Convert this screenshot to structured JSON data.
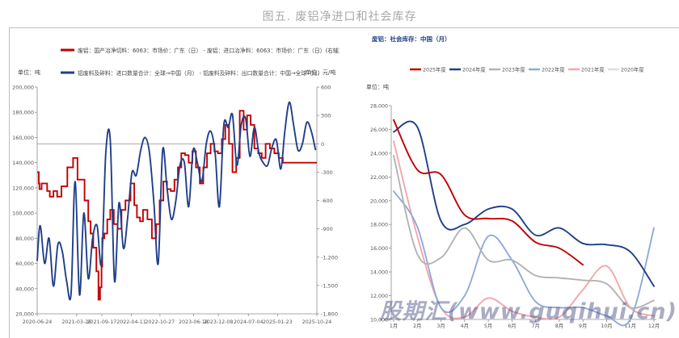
{
  "page_title": "图五. 废铝净进口和社会库存",
  "watermark": "股期汇(www.guqihui.cn)",
  "chart_data": [
    {
      "type": "line",
      "title": "",
      "legend_position": "top",
      "legend": [
        "废铝：国产冶净切料：6063：市场价：广东（日） - 废铝：进口冶净料：6063：市场价：广东（日）(右轴)",
        "铝废料及碎料：进口数量合计：全球→中国（月） - 铝废料及碎料：出口数量合计：中国→全球（月）"
      ],
      "left_unit": "单位：吨",
      "right_unit": "单位：元/吨",
      "ylim_left": [
        20000,
        200000
      ],
      "ylim_right": [
        -1800,
        600
      ],
      "left_ticks": [
        "20,000",
        "40,000",
        "60,000",
        "80,000",
        "100,000",
        "120,000",
        "140,000",
        "160,000",
        "180,000",
        "200,000"
      ],
      "right_ticks": [
        "-1,800",
        "-1,500",
        "-1,200",
        "-900",
        "-600",
        "-300",
        "0",
        "300",
        "600"
      ],
      "x_ticks": [
        "2020-06-24",
        "2021-03-26",
        "2021-09-17",
        "2022-04-11",
        "2022-10-27",
        "2023-06-18",
        "2023-12-08",
        "2024-07-04",
        "2025-01-23",
        "2025-10-24"
      ],
      "series": [
        {
          "name": "废铝：国产冶净切料：6063：市场价：广东（日） - 废铝：进口冶净料：6063：市场价：广东（日）(右轴)",
          "color": "#c00000",
          "axis": "right",
          "x": [
            "2020-06-24",
            "2020-07-05",
            "2020-07-10",
            "2020-07-25",
            "2020-09-01",
            "2020-09-20",
            "2020-10-15",
            "2020-11-10",
            "2020-12-10",
            "2021-01-20",
            "2021-03-01",
            "2021-04-01",
            "2021-05-20",
            "2021-06-15",
            "2021-07-01",
            "2021-07-20",
            "2021-08-10",
            "2021-08-25",
            "2021-09-05",
            "2021-09-15",
            "2021-09-20",
            "2021-10-05",
            "2021-10-25",
            "2021-11-15",
            "2021-12-10",
            "2022-01-05",
            "2022-02-01",
            "2022-03-01",
            "2022-04-05",
            "2022-05-01",
            "2022-05-20",
            "2022-06-10",
            "2022-07-01",
            "2022-08-01",
            "2022-09-01",
            "2022-10-01",
            "2022-10-25",
            "2022-11-20",
            "2022-12-15",
            "2023-01-10",
            "2023-02-05",
            "2023-03-01",
            "2023-03-25",
            "2023-04-20",
            "2023-05-15",
            "2023-06-10",
            "2023-07-05",
            "2023-08-01",
            "2023-08-25",
            "2023-09-20",
            "2023-10-15",
            "2023-11-10",
            "2023-12-05",
            "2024-01-01",
            "2024-01-25",
            "2024-02-20",
            "2024-03-15",
            "2024-04-10",
            "2024-05-05",
            "2024-06-01",
            "2024-06-25",
            "2024-07-20",
            "2024-08-15",
            "2024-09-10",
            "2024-10-05",
            "2024-11-01",
            "2024-12-01",
            "2025-01-01",
            "2025-02-01",
            "2025-03-01",
            "2025-05-01",
            "2025-07-01",
            "2025-09-01",
            "2025-10-24"
          ],
          "values": [
            -300,
            -420,
            -480,
            -420,
            -500,
            -560,
            -500,
            -560,
            -450,
            -250,
            -150,
            -380,
            -600,
            -820,
            -950,
            -1100,
            -1350,
            -1650,
            -1520,
            -1300,
            -1000,
            -950,
            -800,
            -700,
            -850,
            -900,
            -700,
            -600,
            -420,
            -650,
            -780,
            -820,
            -700,
            -800,
            -1000,
            -850,
            -600,
            -400,
            -480,
            -500,
            -380,
            -250,
            -100,
            -120,
            -200,
            -80,
            -250,
            -420,
            -250,
            -100,
            0,
            -80,
            -100,
            50,
            200,
            0,
            -300,
            -150,
            350,
            150,
            300,
            200,
            -50,
            -100,
            -150,
            0,
            -50,
            -100,
            -150,
            -200,
            -200,
            -200,
            -200,
            -200
          ]
        },
        {
          "name": "铝废料及碎料：进口数量合计：全球→中国（月） - 铝废料及碎料：出口数量合计：中国→全球（月）",
          "color": "#1f3f8a",
          "axis": "left",
          "x": [
            "2020-06-24",
            "2020-07-15",
            "2020-08-15",
            "2020-09-15",
            "2020-10-15",
            "2020-11-15",
            "2020-12-15",
            "2021-01-15",
            "2021-02-15",
            "2021-03-15",
            "2021-04-15",
            "2021-05-15",
            "2021-06-15",
            "2021-07-15",
            "2021-08-15",
            "2021-09-15",
            "2021-10-15",
            "2021-11-15",
            "2021-12-15",
            "2022-01-15",
            "2022-02-15",
            "2022-03-15",
            "2022-04-15",
            "2022-05-15",
            "2022-06-15",
            "2022-07-15",
            "2022-08-15",
            "2022-09-15",
            "2022-10-15",
            "2022-11-15",
            "2022-12-15",
            "2023-01-15",
            "2023-02-15",
            "2023-03-15",
            "2023-04-15",
            "2023-05-15",
            "2023-06-15",
            "2023-07-15",
            "2023-08-15",
            "2023-09-15",
            "2023-10-15",
            "2023-11-15",
            "2023-12-15",
            "2024-01-15",
            "2024-02-15",
            "2024-03-15",
            "2024-04-15",
            "2024-05-15",
            "2024-06-15",
            "2024-07-15",
            "2024-08-15",
            "2024-09-15",
            "2024-10-15",
            "2024-11-15",
            "2024-12-15",
            "2025-01-15",
            "2025-02-15",
            "2025-03-15",
            "2025-04-15",
            "2025-05-15",
            "2025-06-15",
            "2025-07-15",
            "2025-08-15",
            "2025-09-15",
            "2025-10-15"
          ],
          "values": [
            62000,
            90000,
            60000,
            80000,
            42000,
            75000,
            70000,
            46000,
            36000,
            125000,
            35000,
            100000,
            48000,
            80000,
            90000,
            60000,
            148000,
            158000,
            46000,
            108000,
            72000,
            95000,
            132000,
            130000,
            150000,
            160000,
            148000,
            108000,
            60000,
            150000,
            120000,
            95000,
            110000,
            138000,
            140000,
            105000,
            150000,
            140000,
            125000,
            155000,
            165000,
            148000,
            105000,
            170000,
            168000,
            178000,
            138000,
            170000,
            175000,
            145000,
            168000,
            148000,
            140000,
            138000,
            152000,
            158000,
            135000,
            165000,
            188000,
            170000,
            150000,
            155000,
            172000,
            165000,
            150000
          ]
        }
      ]
    },
    {
      "type": "line",
      "title": "废铝：社会库存：中国（月）",
      "ylabel": "单位：吨",
      "ylim": [
        10000,
        28000
      ],
      "y_ticks": [
        "10,000",
        "12,000",
        "14,000",
        "16,000",
        "18,000",
        "20,000",
        "22,000",
        "24,000",
        "26,000",
        "28,000"
      ],
      "categories": [
        "1月",
        "2月",
        "3月",
        "4月",
        "5月",
        "6月",
        "7月",
        "8月",
        "9月",
        "10月",
        "11月",
        "12月"
      ],
      "legend_position": "top",
      "series": [
        {
          "name": "2025年度",
          "color": "#c00000",
          "values": [
            26800,
            22600,
            22200,
            18800,
            18500,
            18300,
            16500,
            16000,
            14600,
            null,
            null,
            null
          ]
        },
        {
          "name": "2024年度",
          "color": "#1f3f8a",
          "values": [
            25800,
            26200,
            18300,
            18000,
            19300,
            19300,
            17100,
            17700,
            16400,
            16300,
            15700,
            12800
          ]
        },
        {
          "name": "2023年度",
          "color": "#b3b3b3",
          "values": [
            23800,
            15500,
            15200,
            17700,
            15000,
            15000,
            13700,
            13500,
            13300,
            13000,
            11000,
            11600
          ]
        },
        {
          "name": "2022年度",
          "color": "#8faad6",
          "values": [
            20800,
            17800,
            11000,
            12000,
            17000,
            15000,
            11500,
            11000,
            11000,
            10300,
            10000,
            17700
          ]
        },
        {
          "name": "2021年度",
          "color": "#f4a6ae",
          "values": [
            25000,
            17000,
            11000,
            10200,
            11800,
            10700,
            10200,
            10200,
            12500,
            14500,
            11000,
            10300
          ]
        },
        {
          "name": "2020年度",
          "color": "#dedede",
          "values": [
            null,
            null,
            null,
            null,
            null,
            null,
            null,
            null,
            null,
            null,
            null,
            null
          ]
        }
      ]
    }
  ]
}
